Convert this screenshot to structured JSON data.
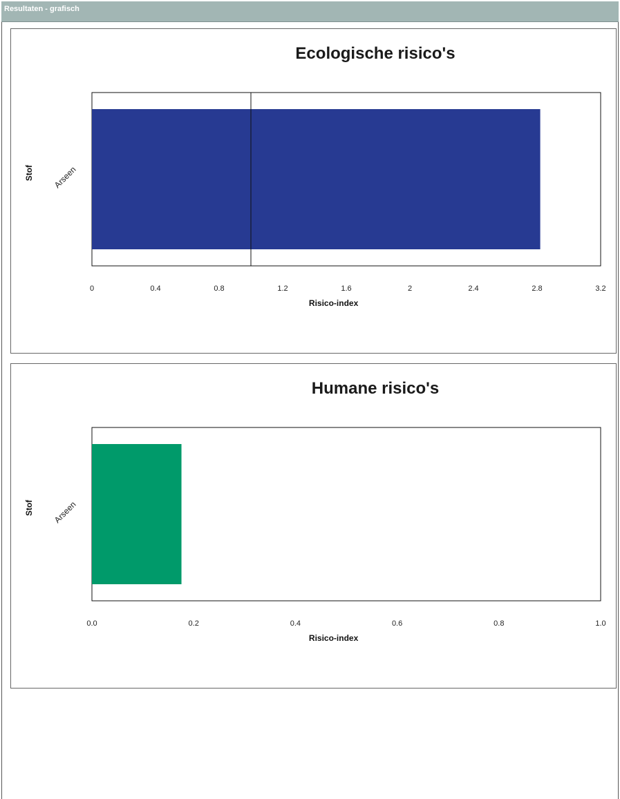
{
  "header": {
    "title": "Resultaten - grafisch"
  },
  "chart_data": [
    {
      "type": "bar",
      "orientation": "horizontal",
      "title": "Ecologische risico's",
      "xlabel": "Risico-index",
      "ylabel": "Stof",
      "categories": [
        "Arseen"
      ],
      "values": [
        2.82
      ],
      "xlim": [
        0,
        3.2
      ],
      "xticks": [
        "0",
        "0.4",
        "0.8",
        "1.2",
        "1.6",
        "2",
        "2.4",
        "2.8",
        "3.2"
      ],
      "reference_line": 1.0,
      "bar_color": "#273a92",
      "grid": false
    },
    {
      "type": "bar",
      "orientation": "horizontal",
      "title": "Humane risico's",
      "xlabel": "Risico-index",
      "ylabel": "Stof",
      "categories": [
        "Arseen"
      ],
      "values": [
        0.176
      ],
      "xlim": [
        0,
        1.0
      ],
      "xticks": [
        "0.0",
        "0.2",
        "0.4",
        "0.6",
        "0.8",
        "1.0"
      ],
      "bar_color": "#009a6a",
      "grid": false
    }
  ]
}
